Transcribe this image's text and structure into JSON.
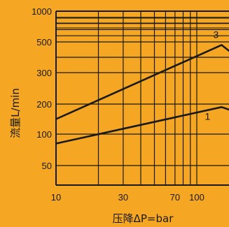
{
  "colors": {
    "background": "#f5a623",
    "grid": "#1a1a1a",
    "line": "#1a1a1a"
  },
  "chart_data": {
    "type": "line",
    "title": "",
    "xlabel": "压降ΔP=bar",
    "ylabel": "流量L/min",
    "x_scale": "log",
    "y_scale": "nonlinear",
    "xlim": [
      10,
      300
    ],
    "ylim": [
      50,
      1000
    ],
    "grid": true,
    "legend": "none",
    "x_ticks": [
      10,
      30,
      70,
      100,
      200,
      300
    ],
    "x_tick_labels": [
      "10",
      "30",
      "70",
      "100",
      "200",
      "300"
    ],
    "y_ticks": [
      1000,
      500,
      300,
      200,
      100,
      50
    ],
    "y_tick_labels": [
      "1000",
      "500",
      "300",
      "200",
      "100",
      "50"
    ],
    "series": [
      {
        "name": "3",
        "x": [
          10,
          150,
          200
        ],
        "y": [
          150,
          480,
          390
        ]
      },
      {
        "name": "1",
        "x": [
          10,
          150,
          200
        ],
        "y": [
          85,
          190,
          170
        ]
      }
    ]
  }
}
